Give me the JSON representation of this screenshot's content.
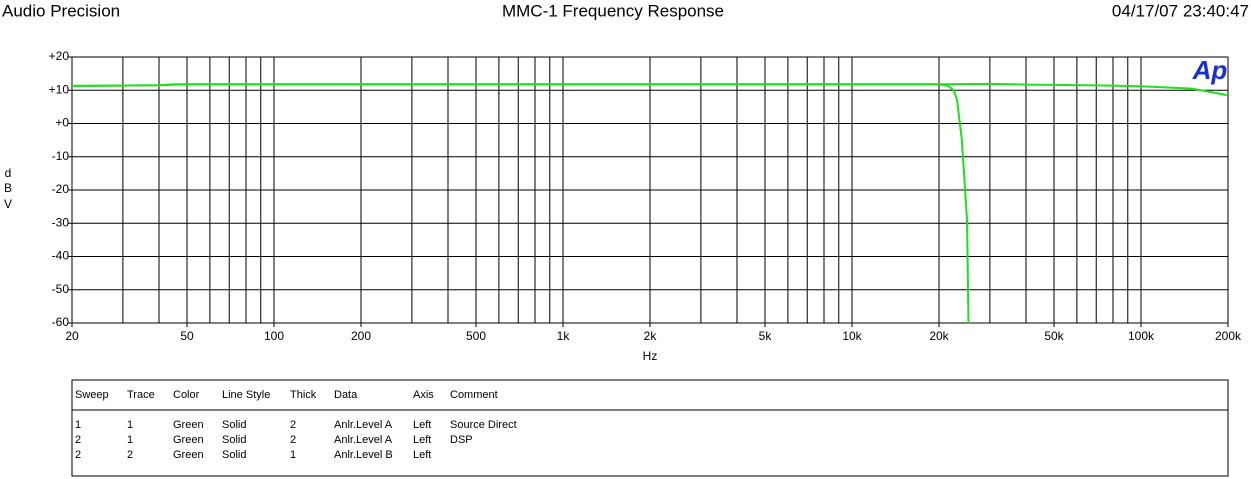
{
  "chart_data": {
    "type": "line",
    "title": "MMC-1 Frequency Response",
    "brand": "Audio Precision",
    "timestamp": "04/17/07 23:40:47",
    "logo": "Ap",
    "x_label": "Hz",
    "y_label": [
      "d",
      "B",
      "V"
    ],
    "x_log": true,
    "grid": true,
    "xlim": [
      20,
      200000
    ],
    "ylim": [
      -60,
      20
    ],
    "xticks": [
      20,
      50,
      100,
      200,
      500,
      {
        "value": 1000,
        "label": "1k"
      },
      {
        "value": 2000,
        "label": "2k"
      },
      {
        "value": 5000,
        "label": "5k"
      },
      {
        "value": 10000,
        "label": "10k"
      },
      {
        "value": 20000,
        "label": "20k"
      },
      {
        "value": 50000,
        "label": "50k"
      },
      {
        "value": 100000,
        "label": "100k"
      },
      {
        "value": 200000,
        "label": "200k"
      }
    ],
    "x_grid": [
      30,
      40,
      50,
      60,
      70,
      80,
      90,
      100,
      200,
      300,
      400,
      500,
      600,
      700,
      800,
      900,
      1000,
      2000,
      3000,
      4000,
      5000,
      6000,
      7000,
      8000,
      9000,
      10000,
      20000,
      30000,
      40000,
      50000,
      60000,
      70000,
      80000,
      90000,
      100000
    ],
    "yticks": [
      {
        "value": 20,
        "label": "+20"
      },
      {
        "value": 10,
        "label": "+10"
      },
      {
        "value": 0,
        "label": "+0"
      },
      -10,
      -20,
      -30,
      -40,
      -50,
      -60
    ],
    "series": [
      {
        "color": "#22dd22",
        "x": [
          20,
          30,
          40,
          45,
          50,
          100,
          1000,
          10000,
          20000,
          30000,
          40000,
          50000,
          80000,
          100000,
          150000,
          200000
        ],
        "values": [
          11.3,
          11.4,
          11.5,
          11.8,
          11.8,
          11.8,
          11.8,
          11.8,
          11.8,
          11.9,
          11.7,
          11.6,
          11.4,
          11.2,
          10.5,
          8.5
        ]
      },
      {
        "color": "#22dd22",
        "x": [
          20,
          40,
          50,
          1000,
          20000,
          21500,
          22500,
          23100,
          24000,
          25000,
          25300
        ],
        "values": [
          11.3,
          11.5,
          11.8,
          11.8,
          11.8,
          11.3,
          10,
          7,
          -5,
          -29,
          -60
        ]
      }
    ]
  },
  "table": {
    "header": [
      "Sweep",
      "Trace",
      "Color",
      "Line Style",
      "Thick",
      "Data",
      "Axis",
      "Comment"
    ],
    "rows": [
      [
        "1",
        "1",
        "Green",
        "Solid",
        "2",
        "Anlr.Level A",
        "Left",
        "Source Direct"
      ],
      [
        "2",
        "1",
        "Green",
        "Solid",
        "2",
        "Anlr.Level A",
        "Left",
        "DSP"
      ],
      [
        "2",
        "2",
        "Green",
        "Solid",
        "1",
        "Anlr.Level B",
        "Left",
        ""
      ]
    ]
  }
}
